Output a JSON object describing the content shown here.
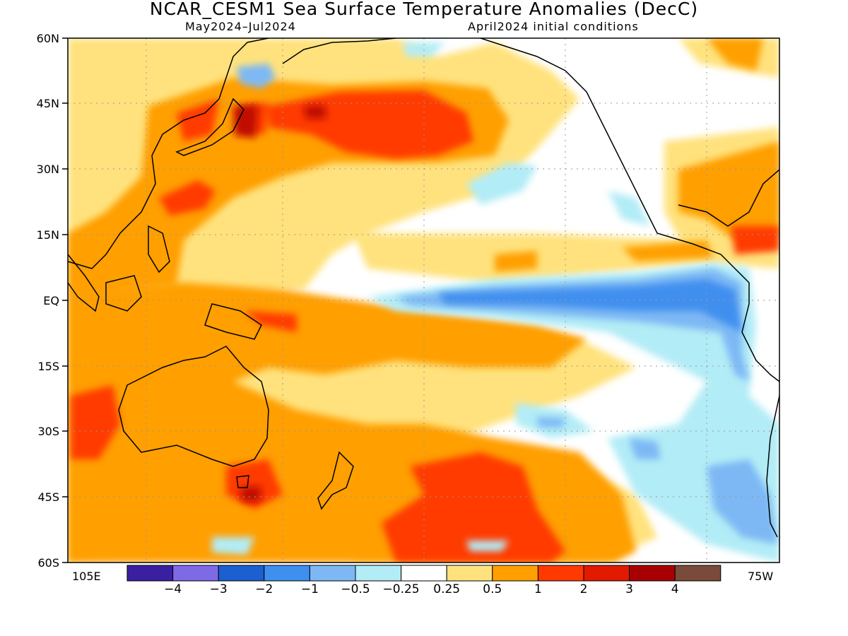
{
  "title": "NCAR_CESM1 Sea Surface Temperature Anomalies (DecC)",
  "subtitle_left": "May2024–Jul2024",
  "subtitle_right": "April2024 initial conditions",
  "lat_labels": [
    "60N",
    "45N",
    "30N",
    "15N",
    "EQ",
    "15S",
    "30S",
    "45S",
    "60S"
  ],
  "lon_left_label": "105E",
  "lon_right_label": "75W",
  "colorbar": {
    "colors": [
      "#3a1fa0",
      "#7f6ae6",
      "#1c5fd0",
      "#3f8fef",
      "#7db8f5",
      "#b2ecf6",
      "#ffffff",
      "#ffe27d",
      "#ff9f00",
      "#ff3a00",
      "#e21a00",
      "#a80000",
      "#7a4a3a"
    ],
    "labels": [
      "−4",
      "−3",
      "−2",
      "−1",
      "−0.5",
      "−0.25",
      "0.25",
      "0.5",
      "1",
      "2",
      "3",
      "4"
    ]
  }
}
